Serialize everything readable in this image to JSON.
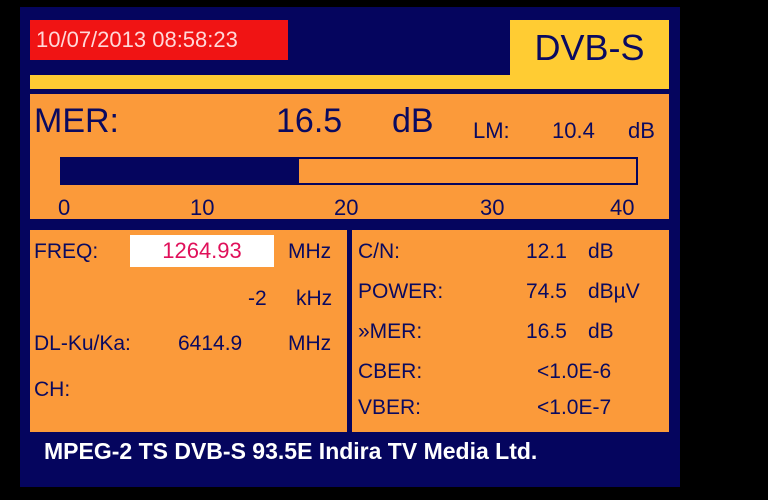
{
  "header": {
    "datetime": "10/07/2013 08:58:23",
    "mode": "DVB-S"
  },
  "mer": {
    "label": "MER:",
    "value": "16.5",
    "unit": "dB",
    "lm_label": "LM:",
    "lm_value": "10.4",
    "lm_unit": "dB",
    "bar_value": 16.5,
    "bar_max": 40,
    "scale": [
      "0",
      "10",
      "20",
      "30",
      "40"
    ]
  },
  "left": {
    "freq_label": "FREQ:",
    "freq_value": "1264.93",
    "freq_unit": "MHz",
    "offset_value": "-2",
    "offset_unit": "kHz",
    "dl_label": "DL-Ku/Ka:",
    "dl_value": "6414.9",
    "dl_unit": "MHz",
    "ch_label": "CH:"
  },
  "right": {
    "rows": [
      {
        "label": "C/N:",
        "value": "12.1",
        "unit": "dB"
      },
      {
        "label": "POWER:",
        "value": "74.5",
        "unit": "dBµV"
      },
      {
        "label": "»MER:",
        "value": "16.5",
        "unit": "dB"
      },
      {
        "label": "CBER:",
        "value": "<1.0E-6",
        "unit": ""
      },
      {
        "label": "VBER:",
        "value": "<1.0E-7",
        "unit": ""
      }
    ]
  },
  "footer": {
    "text": "MPEG-2 TS DVB-S 93.5E Indira TV Media Ltd."
  },
  "colors": {
    "frame": "#05055e",
    "panel": "#fb9a3a",
    "accent": "#ffcc33",
    "datetime_bg": "#f01414",
    "freq_text": "#e0105a"
  }
}
